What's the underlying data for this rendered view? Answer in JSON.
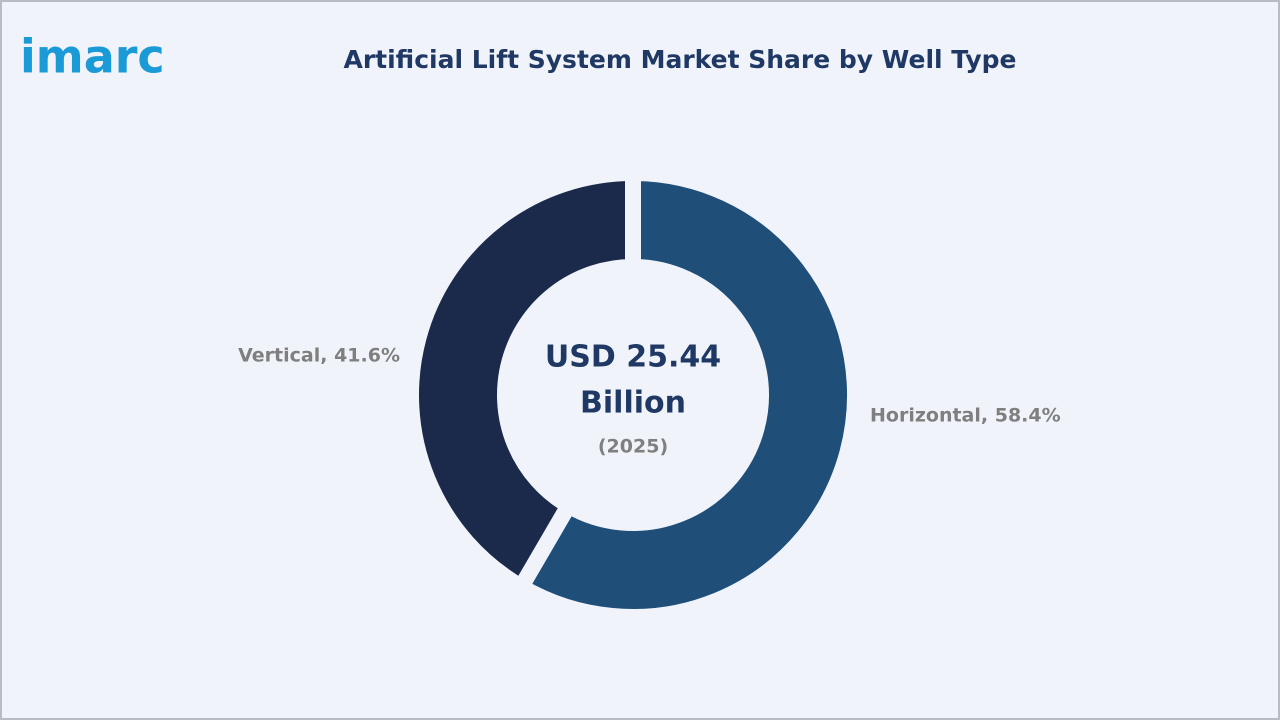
{
  "logo": "imarc",
  "chart_data": {
    "type": "donut",
    "title": "Artificial Lift System Market Share by Well Type",
    "categories": [
      "Horizontal",
      "Vertical"
    ],
    "values": [
      58.4,
      41.6
    ],
    "value_labels": [
      "Horizontal, 58.4%",
      "Vertical, 41.6%"
    ],
    "colors": [
      "#1f4e79",
      "#1b2a4a"
    ],
    "center_text": [
      "USD 25.44",
      "Billion"
    ],
    "center_subtext": "(2025)"
  }
}
